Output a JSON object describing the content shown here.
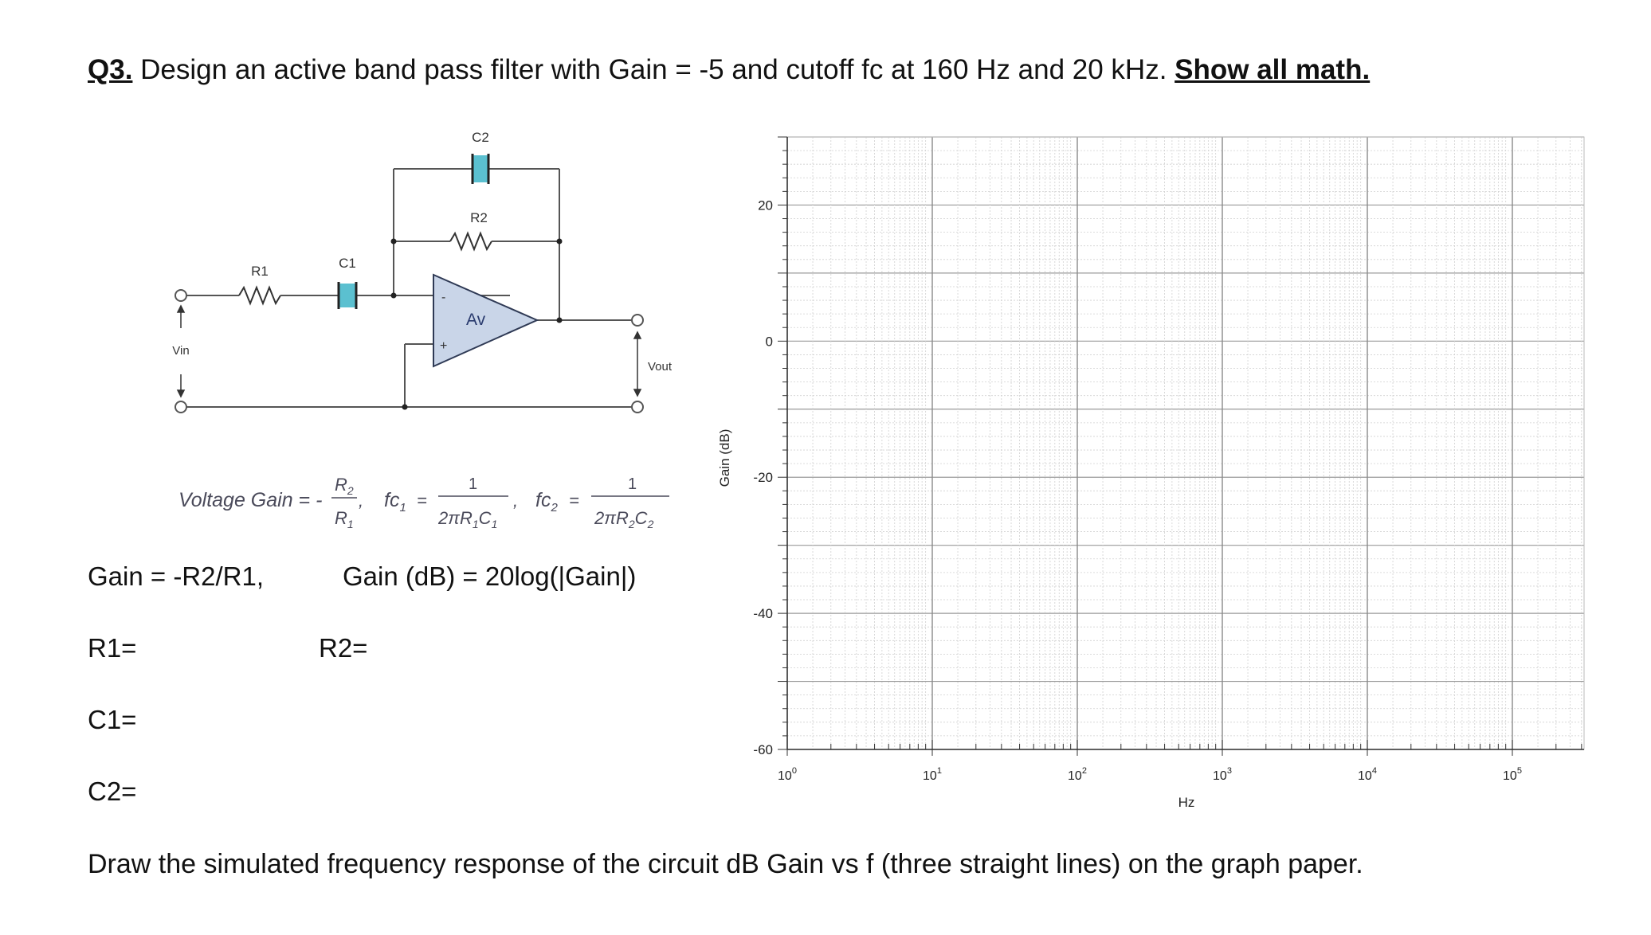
{
  "question": {
    "number": "Q3.",
    "text": " Design an active band pass filter with Gain = -5 and cutoff fc at 160 Hz and 20 kHz. ",
    "emphasis": "Show all math."
  },
  "circuit": {
    "labels": {
      "c2": "C2",
      "r2": "R2",
      "r1": "R1",
      "c1": "C1",
      "av": "Av",
      "minus": "-",
      "plus": "+",
      "vin": "Vin",
      "vout": "Vout"
    }
  },
  "formula": {
    "voltage_gain": "Voltage Gain = -",
    "r2": "R",
    "r2_sub": "2",
    "r1": "R",
    "r1_sub": "1",
    "fc1": "fc",
    "fc1_sub": "1",
    "fc2": "fc",
    "fc2_sub": "2",
    "one": "1",
    "den1": "2πR",
    "den1_sub1": "1",
    "den1_c": "C",
    "den1_sub2": "1",
    "den2": "2πR",
    "den2_sub1": "2",
    "den2_c": "C",
    "den2_sub2": "2"
  },
  "equations": {
    "gain": "Gain = -R2/R1,",
    "gain_db": "Gain (dB) = 20log(|Gain|)"
  },
  "answers": {
    "r1": "R1=",
    "r2": "R2=",
    "c1": "C1=",
    "c2": "C2="
  },
  "graph": {
    "y_label": "Gain (dB)",
    "x_label": "Hz",
    "y_ticks": [
      "20",
      "0",
      "-20",
      "-40",
      "-60"
    ],
    "x_tick_base": "10",
    "x_tick_exps": [
      "0",
      "1",
      "2",
      "3",
      "4",
      "5"
    ],
    "x_scale": "log",
    "x_range": [
      1,
      100000
    ],
    "y_range": [
      -60,
      30
    ],
    "grid": true
  },
  "footer": "Draw the simulated frequency response of the circuit dB Gain vs f (three straight lines) on the graph paper.",
  "colors": {
    "component_fill": "#5bc0d0",
    "opamp_fill": "#c9d5e8",
    "opamp_stroke": "#2f3a55"
  }
}
